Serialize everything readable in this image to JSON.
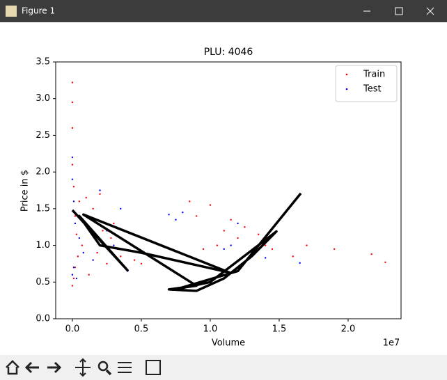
{
  "window": {
    "title": "Figure 1"
  },
  "chart_data": {
    "type": "scatter",
    "title": "PLU: 4046",
    "x_label": "Volume",
    "y_label": "Price in $",
    "x_offset_label": "1e7",
    "xlim": [
      -0.121,
      2.384
    ],
    "ylim": [
      0,
      3.5
    ],
    "xticks": [
      {
        "value": 0,
        "label": "0.0"
      },
      0.5,
      {
        "value": 1,
        "label": "1.0"
      },
      1.5,
      {
        "value": 2,
        "label": "2.0"
      }
    ],
    "yticks": [
      {
        "value": 0,
        "label": "0.0"
      },
      0.5,
      {
        "value": 1,
        "label": "1.0"
      },
      1.5,
      {
        "value": 2,
        "label": "2.0"
      },
      2.5,
      {
        "value": 3,
        "label": "3.0"
      },
      3.5
    ],
    "legend_position": "upper right",
    "series": [
      {
        "name": "Train",
        "type": "scatter",
        "color": "#ff0000",
        "x": [
          0,
          0,
          0,
          0,
          0,
          0.01,
          0.01,
          0.02,
          0.02,
          0.03,
          0.04,
          0.05,
          0.07,
          0.1,
          0.12,
          0.15,
          0.18,
          0.2,
          0.22,
          0.25,
          0.28,
          0.3,
          0.33,
          0.35,
          0.38,
          0.4,
          0.45,
          0.5,
          0.85,
          0.9,
          0.95,
          1.0,
          1.05,
          1.1,
          1.15,
          1.2,
          1.25,
          1.3,
          1.35,
          1.4,
          1.45,
          1.6,
          1.7,
          1.9,
          2.17,
          2.27
        ],
        "y": [
          3.22,
          2.95,
          2.6,
          2.1,
          0.45,
          1.8,
          0.55,
          1.4,
          0.7,
          1.15,
          0.85,
          1.6,
          1.0,
          1.65,
          0.6,
          1.5,
          0.9,
          1.7,
          1.2,
          0.75,
          1.1,
          1.3,
          0.95,
          0.85,
          0.7,
          1.05,
          0.8,
          0.75,
          1.6,
          1.4,
          0.95,
          1.55,
          1.0,
          1.2,
          1.35,
          1.1,
          1.25,
          0.9,
          1.15,
          1.0,
          0.95,
          0.85,
          1.0,
          0.95,
          0.88,
          0.77
        ]
      },
      {
        "name": "Test",
        "type": "scatter",
        "color": "#0000ff",
        "x": [
          0,
          0,
          0,
          0.01,
          0.01,
          0.02,
          0.03,
          0.05,
          0.08,
          0.1,
          0.15,
          0.2,
          0.25,
          0.3,
          0.35,
          0.4,
          0.7,
          0.75,
          0.8,
          0.85,
          1.1,
          1.15,
          1.2,
          1.3,
          1.4,
          1.65
        ],
        "y": [
          2.2,
          1.9,
          0.6,
          1.6,
          0.7,
          1.3,
          0.55,
          1.1,
          0.9,
          1.4,
          0.8,
          1.75,
          1.2,
          1.0,
          1.5,
          0.65,
          1.42,
          1.35,
          1.45,
          0.85,
          0.95,
          1.0,
          1.3,
          0.9,
          0.83,
          0.76
        ]
      },
      {
        "type": "line",
        "color": "#000000",
        "x": [
          0,
          0.4,
          0.05,
          0.2,
          0.5,
          1.14,
          0.08,
          0.9,
          0.7,
          0.9,
          1.1,
          1.3,
          1.48,
          1.0,
          0.75,
          1.2,
          1.657
        ],
        "y": [
          1.48,
          0.66,
          1.4,
          1.0,
          0.9,
          0.63,
          1.42,
          0.45,
          0.4,
          0.38,
          0.55,
          0.85,
          1.19,
          0.5,
          0.4,
          0.65,
          1.71
        ]
      }
    ]
  }
}
